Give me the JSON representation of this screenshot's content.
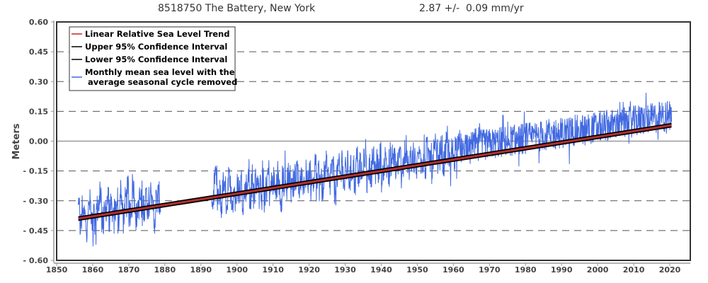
{
  "header": {
    "station": "8518750 The Battery, New York",
    "rate": "2.87 +/-  0.09 mm/yr"
  },
  "chart_data": {
    "type": "line",
    "title": "8518750 The Battery, New York",
    "subtitle": "2.87 +/-  0.09 mm/yr",
    "xlabel": "",
    "ylabel": "Meters",
    "xlim": [
      1850,
      2025
    ],
    "ylim": [
      -0.6,
      0.6
    ],
    "xticks": [
      "1850",
      "1860",
      "1870",
      "1880",
      "1890",
      "1900",
      "1910",
      "1920",
      "1930",
      "1940",
      "1950",
      "1960",
      "1970",
      "1980",
      "1990",
      "2000",
      "2010",
      "2020"
    ],
    "yticks": [
      "0.60",
      "0.45",
      "0.30",
      "0.15",
      "0.00",
      "-0.15",
      "-0.30",
      "-0.45",
      "-0.60"
    ],
    "grid": "horizontal-dashed",
    "legend_position": "top-left",
    "legend": [
      {
        "label": "Linear Relative Sea Level Trend",
        "color": "#cc2222"
      },
      {
        "label": "Upper 95% Confidence Interval",
        "color": "#000000"
      },
      {
        "label": "Lower 95% Confidence Interval",
        "color": "#000000"
      },
      {
        "label": "Monthly mean sea level with the",
        "label2": " average seasonal cycle removed",
        "color": "#4169e1"
      }
    ],
    "trend": {
      "slope_mm_per_yr": 2.87,
      "ci_mm_per_yr": 0.09,
      "start_year": 1856.0,
      "end_year": 2020.5,
      "start_value": -0.39,
      "end_value": 0.08,
      "ci_offset_m": 0.008
    },
    "series": [
      {
        "name": "Monthly mean sea level",
        "segments": [
          {
            "start": 1856.0,
            "end": 1878.9
          },
          {
            "start": 1893.0,
            "end": 2020.5
          }
        ],
        "semiannual_anomalies_m": [
          0.08,
          -0.06,
          0.1,
          0.02,
          -0.09,
          0.05,
          0.12,
          -0.04,
          0.01,
          -0.12,
          0.06,
          0.09,
          0.22,
          -0.05,
          -0.02,
          0.07,
          0.13,
          -0.03,
          0.04,
          -0.08,
          0.01,
          0.11,
          -0.06,
          0.15,
          0.03,
          -0.07,
          0.08,
          0.17,
          -0.02,
          0.05,
          0.21,
          0.03,
          -0.07,
          0.04,
          0.09,
          -0.05,
          0.02,
          0.11,
          -0.09,
          0.06,
          0.13,
          -0.02,
          -0.11,
          0.05,
          0.08,
          0.02,
          -0.06,
          0.07,
          0.15,
          -0.04,
          0.03,
          -0.08,
          0.09,
          0.01,
          -0.05,
          0.12,
          0.06,
          -0.03,
          0.04,
          -0.1,
          0.07,
          0.02,
          0.1,
          -0.06,
          0.01,
          0.05,
          0.16,
          -0.07,
          0.03,
          -0.02,
          0.08,
          0.11,
          -0.04,
          0.02,
          0.05,
          -0.08,
          0.09,
          0.14,
          -0.03,
          0.04,
          0.06,
          -0.05,
          0.12,
          0.02,
          -0.09,
          0.07,
          0.03,
          -0.02,
          0.1,
          0.05,
          -0.06,
          0.01,
          0.08,
          0.13,
          -0.04,
          0.06,
          0.02,
          -0.07,
          0.09,
          0.03,
          0.11,
          -0.03,
          0.05,
          0.15,
          -0.05,
          0.02,
          0.07,
          -0.08,
          0.04,
          0.12,
          0.01,
          -0.04,
          0.09,
          0.06,
          -0.11,
          0.03,
          0.08,
          0.02,
          0.16,
          -0.06,
          0.04,
          0.1,
          -0.02,
          0.05,
          0.07,
          -0.05,
          0.13,
          0.02,
          0.06,
          -0.03,
          0.09,
          0.18,
          -0.08,
          0.04,
          0.01,
          0.11,
          -0.04,
          0.07,
          0.03,
          0.14,
          -0.06,
          0.05,
          0.1,
          0.02,
          -0.07,
          0.08,
          0.04,
          0.12,
          -0.02,
          0.06,
          0.09,
          -0.05,
          0.03,
          0.15,
          0.01,
          -0.03,
          0.07,
          0.1,
          0.05,
          -0.04,
          0.08,
          0.22,
          0.03,
          0.06,
          -0.02,
          0.11,
          0.07,
          0.04,
          -0.05,
          0.09,
          0.12,
          0.02,
          0.06,
          0.1,
          -0.03,
          0.05,
          0.13,
          0.08,
          -0.01,
          0.07,
          0.04,
          0.11,
          0.15,
          0.06,
          0.09,
          0.03,
          0.12,
          0.07,
          0.1,
          0.05,
          0.14,
          0.08,
          0.11,
          0.06,
          0.16,
          0.09
        ]
      }
    ]
  }
}
